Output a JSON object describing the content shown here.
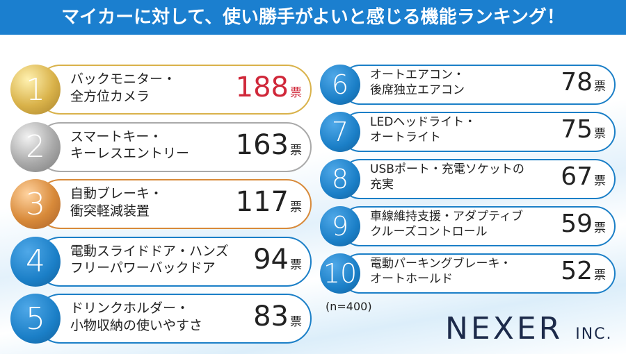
{
  "header": {
    "title": "マイカーに対して、使い勝手がよいと感じる機能ランキング！"
  },
  "unit": "票",
  "items": [
    {
      "rank": 1,
      "lines": [
        "バックモニター・",
        "全方位カメラ"
      ],
      "count": 188
    },
    {
      "rank": 2,
      "lines": [
        "スマートキー・",
        "キーレスエントリー"
      ],
      "count": 163
    },
    {
      "rank": 3,
      "lines": [
        "自動ブレーキ・",
        "衝突軽減装置"
      ],
      "count": 117
    },
    {
      "rank": 4,
      "lines": [
        "電動スライドドア・ハンズ",
        "フリーパワーバックドア"
      ],
      "count": 94
    },
    {
      "rank": 5,
      "lines": [
        "ドリンクホルダー・",
        "小物収納の使いやすさ"
      ],
      "count": 83
    },
    {
      "rank": 6,
      "lines": [
        "オートエアコン・",
        "後席独立エアコン"
      ],
      "count": 78
    },
    {
      "rank": 7,
      "lines": [
        "LEDヘッドライト・",
        "オートライト"
      ],
      "count": 75
    },
    {
      "rank": 8,
      "lines": [
        "USBポート・充電ソケットの",
        "充実"
      ],
      "count": 67
    },
    {
      "rank": 9,
      "lines": [
        "車線維持支援・アダプティブ",
        "クルーズコントロール"
      ],
      "count": 59
    },
    {
      "rank": 10,
      "lines": [
        "電動パーキングブレーキ・",
        "オートホールド"
      ],
      "count": 52
    }
  ],
  "note": "(n=400)",
  "logo": {
    "name": "NEXER",
    "suffix": "INC."
  }
}
